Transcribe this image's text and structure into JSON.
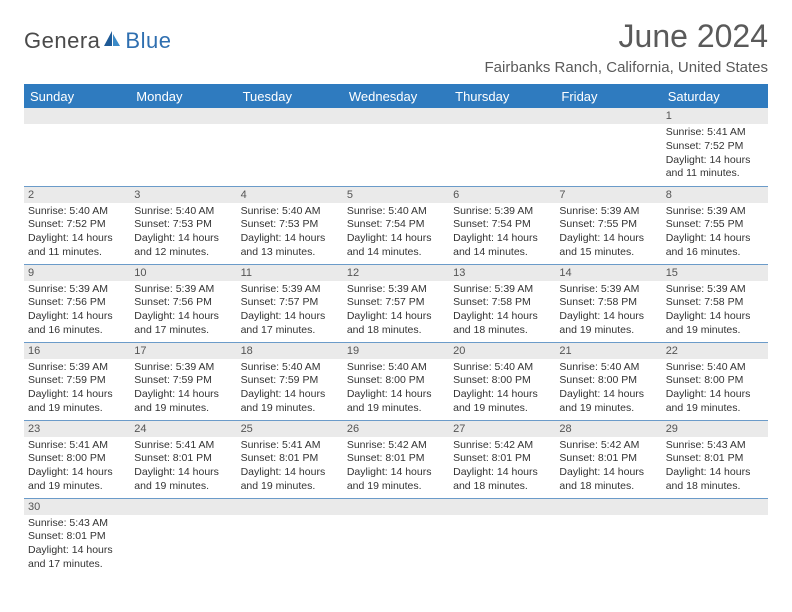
{
  "brand": {
    "text_dark": "Genera",
    "text_blue": "Blue"
  },
  "title": "June 2024",
  "location": "Fairbanks Ranch, California, United States",
  "colors": {
    "header_bg": "#2f7bbf",
    "header_text": "#ffffff",
    "daynum_bg": "#eaeaea",
    "cell_border": "#6b9bc9",
    "title_color": "#5a5a5a",
    "logo_blue": "#2f6fb0",
    "logo_dark": "#4a4a4a"
  },
  "weekdays": [
    "Sunday",
    "Monday",
    "Tuesday",
    "Wednesday",
    "Thursday",
    "Friday",
    "Saturday"
  ],
  "weeks": [
    [
      {
        "empty": true
      },
      {
        "empty": true
      },
      {
        "empty": true
      },
      {
        "empty": true
      },
      {
        "empty": true
      },
      {
        "empty": true
      },
      {
        "day": "1",
        "sunrise": "Sunrise: 5:41 AM",
        "sunset": "Sunset: 7:52 PM",
        "daylight": "Daylight: 14 hours and 11 minutes."
      }
    ],
    [
      {
        "day": "2",
        "sunrise": "Sunrise: 5:40 AM",
        "sunset": "Sunset: 7:52 PM",
        "daylight": "Daylight: 14 hours and 11 minutes."
      },
      {
        "day": "3",
        "sunrise": "Sunrise: 5:40 AM",
        "sunset": "Sunset: 7:53 PM",
        "daylight": "Daylight: 14 hours and 12 minutes."
      },
      {
        "day": "4",
        "sunrise": "Sunrise: 5:40 AM",
        "sunset": "Sunset: 7:53 PM",
        "daylight": "Daylight: 14 hours and 13 minutes."
      },
      {
        "day": "5",
        "sunrise": "Sunrise: 5:40 AM",
        "sunset": "Sunset: 7:54 PM",
        "daylight": "Daylight: 14 hours and 14 minutes."
      },
      {
        "day": "6",
        "sunrise": "Sunrise: 5:39 AM",
        "sunset": "Sunset: 7:54 PM",
        "daylight": "Daylight: 14 hours and 14 minutes."
      },
      {
        "day": "7",
        "sunrise": "Sunrise: 5:39 AM",
        "sunset": "Sunset: 7:55 PM",
        "daylight": "Daylight: 14 hours and 15 minutes."
      },
      {
        "day": "8",
        "sunrise": "Sunrise: 5:39 AM",
        "sunset": "Sunset: 7:55 PM",
        "daylight": "Daylight: 14 hours and 16 minutes."
      }
    ],
    [
      {
        "day": "9",
        "sunrise": "Sunrise: 5:39 AM",
        "sunset": "Sunset: 7:56 PM",
        "daylight": "Daylight: 14 hours and 16 minutes."
      },
      {
        "day": "10",
        "sunrise": "Sunrise: 5:39 AM",
        "sunset": "Sunset: 7:56 PM",
        "daylight": "Daylight: 14 hours and 17 minutes."
      },
      {
        "day": "11",
        "sunrise": "Sunrise: 5:39 AM",
        "sunset": "Sunset: 7:57 PM",
        "daylight": "Daylight: 14 hours and 17 minutes."
      },
      {
        "day": "12",
        "sunrise": "Sunrise: 5:39 AM",
        "sunset": "Sunset: 7:57 PM",
        "daylight": "Daylight: 14 hours and 18 minutes."
      },
      {
        "day": "13",
        "sunrise": "Sunrise: 5:39 AM",
        "sunset": "Sunset: 7:58 PM",
        "daylight": "Daylight: 14 hours and 18 minutes."
      },
      {
        "day": "14",
        "sunrise": "Sunrise: 5:39 AM",
        "sunset": "Sunset: 7:58 PM",
        "daylight": "Daylight: 14 hours and 19 minutes."
      },
      {
        "day": "15",
        "sunrise": "Sunrise: 5:39 AM",
        "sunset": "Sunset: 7:58 PM",
        "daylight": "Daylight: 14 hours and 19 minutes."
      }
    ],
    [
      {
        "day": "16",
        "sunrise": "Sunrise: 5:39 AM",
        "sunset": "Sunset: 7:59 PM",
        "daylight": "Daylight: 14 hours and 19 minutes."
      },
      {
        "day": "17",
        "sunrise": "Sunrise: 5:39 AM",
        "sunset": "Sunset: 7:59 PM",
        "daylight": "Daylight: 14 hours and 19 minutes."
      },
      {
        "day": "18",
        "sunrise": "Sunrise: 5:40 AM",
        "sunset": "Sunset: 7:59 PM",
        "daylight": "Daylight: 14 hours and 19 minutes."
      },
      {
        "day": "19",
        "sunrise": "Sunrise: 5:40 AM",
        "sunset": "Sunset: 8:00 PM",
        "daylight": "Daylight: 14 hours and 19 minutes."
      },
      {
        "day": "20",
        "sunrise": "Sunrise: 5:40 AM",
        "sunset": "Sunset: 8:00 PM",
        "daylight": "Daylight: 14 hours and 19 minutes."
      },
      {
        "day": "21",
        "sunrise": "Sunrise: 5:40 AM",
        "sunset": "Sunset: 8:00 PM",
        "daylight": "Daylight: 14 hours and 19 minutes."
      },
      {
        "day": "22",
        "sunrise": "Sunrise: 5:40 AM",
        "sunset": "Sunset: 8:00 PM",
        "daylight": "Daylight: 14 hours and 19 minutes."
      }
    ],
    [
      {
        "day": "23",
        "sunrise": "Sunrise: 5:41 AM",
        "sunset": "Sunset: 8:00 PM",
        "daylight": "Daylight: 14 hours and 19 minutes."
      },
      {
        "day": "24",
        "sunrise": "Sunrise: 5:41 AM",
        "sunset": "Sunset: 8:01 PM",
        "daylight": "Daylight: 14 hours and 19 minutes."
      },
      {
        "day": "25",
        "sunrise": "Sunrise: 5:41 AM",
        "sunset": "Sunset: 8:01 PM",
        "daylight": "Daylight: 14 hours and 19 minutes."
      },
      {
        "day": "26",
        "sunrise": "Sunrise: 5:42 AM",
        "sunset": "Sunset: 8:01 PM",
        "daylight": "Daylight: 14 hours and 19 minutes."
      },
      {
        "day": "27",
        "sunrise": "Sunrise: 5:42 AM",
        "sunset": "Sunset: 8:01 PM",
        "daylight": "Daylight: 14 hours and 18 minutes."
      },
      {
        "day": "28",
        "sunrise": "Sunrise: 5:42 AM",
        "sunset": "Sunset: 8:01 PM",
        "daylight": "Daylight: 14 hours and 18 minutes."
      },
      {
        "day": "29",
        "sunrise": "Sunrise: 5:43 AM",
        "sunset": "Sunset: 8:01 PM",
        "daylight": "Daylight: 14 hours and 18 minutes."
      }
    ],
    [
      {
        "day": "30",
        "sunrise": "Sunrise: 5:43 AM",
        "sunset": "Sunset: 8:01 PM",
        "daylight": "Daylight: 14 hours and 17 minutes."
      },
      {
        "empty": true
      },
      {
        "empty": true
      },
      {
        "empty": true
      },
      {
        "empty": true
      },
      {
        "empty": true
      },
      {
        "empty": true
      }
    ]
  ]
}
